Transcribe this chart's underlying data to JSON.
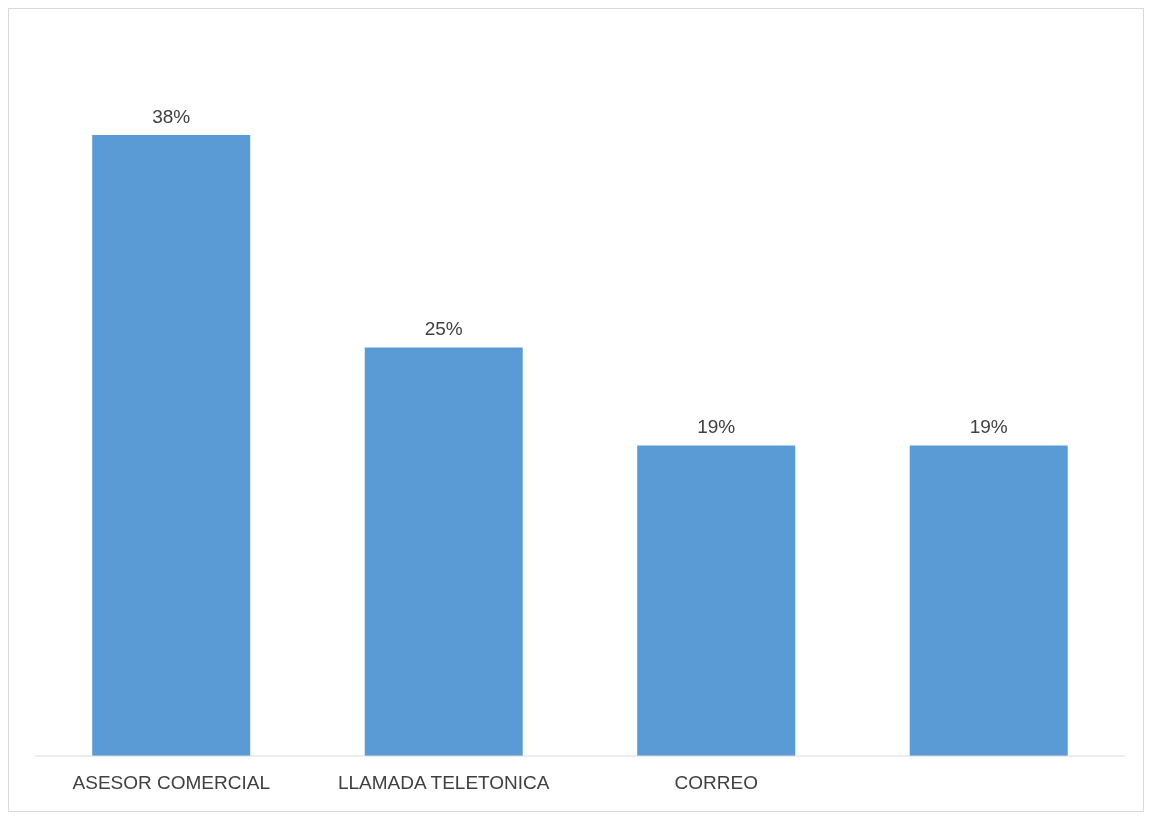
{
  "chart_data": {
    "type": "bar",
    "categories": [
      "ASESOR COMERCIAL",
      "LLAMADA TELETONICA",
      "CORREO",
      null
    ],
    "values": [
      38,
      25,
      19,
      19
    ],
    "value_labels": [
      "38%",
      "25%",
      "19%",
      "19%"
    ],
    "color": "#5b9bd5",
    "grid": false,
    "legend": false
  }
}
